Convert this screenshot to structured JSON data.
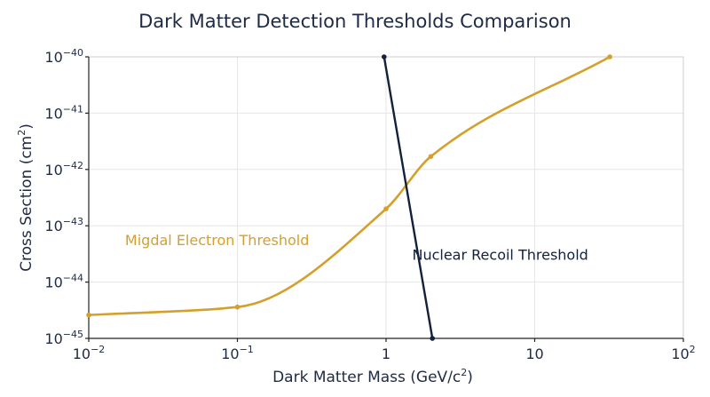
{
  "chart_data": {
    "type": "line",
    "title": "Dark Matter Detection Thresholds Comparison",
    "xlabel": "Dark Matter Mass (GeV/c",
    "xlabel_sup": "2",
    "xlabel_tail": ")",
    "ylabel": "Cross Section (cm",
    "ylabel_sup": "2",
    "ylabel_tail": ")",
    "x_scale": "log",
    "y_scale": "log",
    "xlim": [
      0.01,
      100
    ],
    "ylim": [
      1e-45,
      1e-40
    ],
    "x_ticks": [
      {
        "value": 0.01,
        "base": "10",
        "sup": "−2"
      },
      {
        "value": 0.1,
        "base": "10",
        "sup": "−1"
      },
      {
        "value": 1,
        "base": "1",
        "sup": ""
      },
      {
        "value": 10,
        "base": "10",
        "sup": ""
      },
      {
        "value": 100,
        "base": "10",
        "sup": "2"
      }
    ],
    "y_ticks": [
      {
        "value": 1e-40,
        "base": "10",
        "sup": "−40"
      },
      {
        "value": 1e-41,
        "base": "10",
        "sup": "−41"
      },
      {
        "value": 1e-42,
        "base": "10",
        "sup": "−42"
      },
      {
        "value": 1e-43,
        "base": "10",
        "sup": "−43"
      },
      {
        "value": 1e-44,
        "base": "10",
        "sup": "−44"
      },
      {
        "value": 1e-45,
        "base": "10",
        "sup": "−45"
      }
    ],
    "grid": true,
    "series": [
      {
        "name": "Migdal Electron Threshold",
        "color": "#d4a02c",
        "smooth": true,
        "x": [
          0.01,
          0.1,
          1,
          2,
          32
        ],
        "y": [
          2.6e-45,
          3.6e-45,
          2e-43,
          1.7e-42,
          1e-40
        ]
      },
      {
        "name": "Nuclear Recoil Threshold",
        "color": "#14213d",
        "smooth": false,
        "x": [
          0.97,
          2.05
        ],
        "y": [
          1e-40,
          1e-45
        ]
      }
    ],
    "annotations": [
      {
        "series": 0,
        "x": 0.011,
        "y": 4.5e-44,
        "anchor": "start"
      },
      {
        "series": 1,
        "x": 1.5,
        "y": 2.5e-44,
        "anchor": "start"
      }
    ]
  }
}
